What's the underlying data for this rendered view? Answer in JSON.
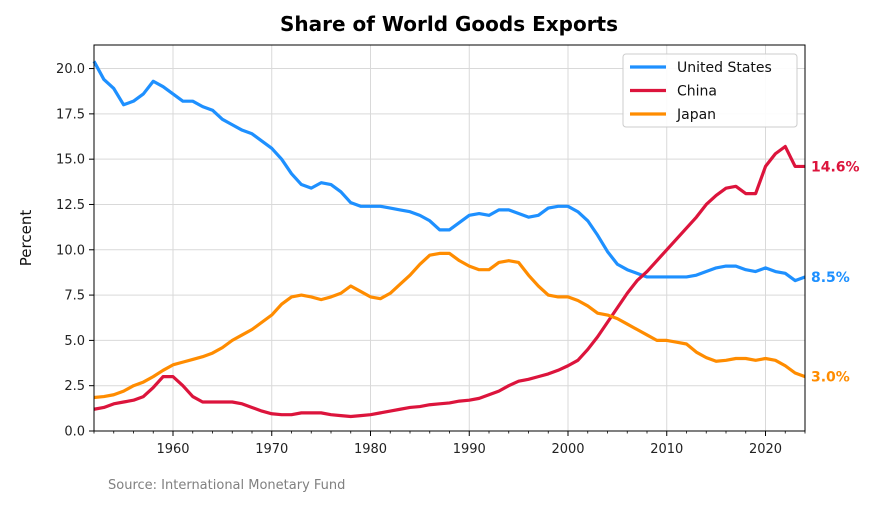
{
  "chart_data": {
    "type": "line",
    "title": "Share of World Goods Exports",
    "xlabel": "",
    "ylabel": "Percent",
    "xlim": [
      1952,
      2024
    ],
    "ylim": [
      0,
      21.3
    ],
    "x_ticks": [
      1960,
      1970,
      1980,
      1990,
      2000,
      2010,
      2020
    ],
    "y_ticks": [
      0.0,
      2.5,
      5.0,
      7.5,
      10.0,
      12.5,
      15.0,
      17.5,
      20.0
    ],
    "grid": true,
    "legend_position": "top-right",
    "x": [
      1952,
      1953,
      1954,
      1955,
      1956,
      1957,
      1958,
      1959,
      1960,
      1961,
      1962,
      1963,
      1964,
      1965,
      1966,
      1967,
      1968,
      1969,
      1970,
      1971,
      1972,
      1973,
      1974,
      1975,
      1976,
      1977,
      1978,
      1979,
      1980,
      1981,
      1982,
      1983,
      1984,
      1985,
      1986,
      1987,
      1988,
      1989,
      1990,
      1991,
      1992,
      1993,
      1994,
      1995,
      1996,
      1997,
      1998,
      1999,
      2000,
      2001,
      2002,
      2003,
      2004,
      2005,
      2006,
      2007,
      2008,
      2009,
      2010,
      2011,
      2012,
      2013,
      2014,
      2015,
      2016,
      2017,
      2018,
      2019,
      2020,
      2021,
      2022,
      2023,
      2024
    ],
    "series": [
      {
        "name": "United States",
        "color": "#1E90FF",
        "end_label": "8.5%",
        "values": [
          20.4,
          19.4,
          18.9,
          18.0,
          18.2,
          18.6,
          19.3,
          19.0,
          18.6,
          18.2,
          18.2,
          17.9,
          17.7,
          17.2,
          16.9,
          16.6,
          16.4,
          16.0,
          15.6,
          15.0,
          14.2,
          13.6,
          13.4,
          13.7,
          13.6,
          13.2,
          12.6,
          12.4,
          12.4,
          12.4,
          12.3,
          12.2,
          12.1,
          11.9,
          11.6,
          11.1,
          11.1,
          11.5,
          11.9,
          12.0,
          11.9,
          12.2,
          12.2,
          12.0,
          11.8,
          11.9,
          12.3,
          12.4,
          12.4,
          12.1,
          11.6,
          10.8,
          9.9,
          9.2,
          8.9,
          8.7,
          8.5,
          8.5,
          8.5,
          8.5,
          8.5,
          8.6,
          8.8,
          9.0,
          9.1,
          9.1,
          8.9,
          8.8,
          9.0,
          8.8,
          8.7,
          8.3,
          8.5
        ]
      },
      {
        "name": "China",
        "color": "#DC143C",
        "end_label": "14.6%",
        "values": [
          1.2,
          1.3,
          1.5,
          1.6,
          1.7,
          1.9,
          2.4,
          3.0,
          3.0,
          2.5,
          1.9,
          1.6,
          1.6,
          1.6,
          1.6,
          1.5,
          1.3,
          1.1,
          0.95,
          0.9,
          0.9,
          1.0,
          1.0,
          1.0,
          0.9,
          0.85,
          0.8,
          0.85,
          0.9,
          1.0,
          1.1,
          1.2,
          1.3,
          1.35,
          1.45,
          1.5,
          1.55,
          1.65,
          1.7,
          1.8,
          2.0,
          2.2,
          2.5,
          2.75,
          2.85,
          3.0,
          3.15,
          3.35,
          3.6,
          3.9,
          4.5,
          5.2,
          6.0,
          6.8,
          7.6,
          8.3,
          8.8,
          9.4,
          10.0,
          10.6,
          11.2,
          11.8,
          12.5,
          13.0,
          13.4,
          13.5,
          13.1,
          13.1,
          14.6,
          15.3,
          15.7,
          14.6,
          14.6
        ]
      },
      {
        "name": "Japan",
        "color": "#FF8C00",
        "end_label": "3.0%",
        "values": [
          1.85,
          1.9,
          2.0,
          2.2,
          2.5,
          2.7,
          3.0,
          3.35,
          3.65,
          3.8,
          3.95,
          4.1,
          4.3,
          4.6,
          5.0,
          5.3,
          5.6,
          6.0,
          6.4,
          7.0,
          7.4,
          7.5,
          7.4,
          7.25,
          7.4,
          7.6,
          8.0,
          7.7,
          7.4,
          7.3,
          7.6,
          8.1,
          8.6,
          9.2,
          9.7,
          9.8,
          9.8,
          9.4,
          9.1,
          8.9,
          8.9,
          9.3,
          9.4,
          9.3,
          8.6,
          8.0,
          7.5,
          7.4,
          7.4,
          7.2,
          6.9,
          6.5,
          6.4,
          6.2,
          5.9,
          5.6,
          5.3,
          5.0,
          5.0,
          4.9,
          4.8,
          4.35,
          4.05,
          3.85,
          3.9,
          4.0,
          4.0,
          3.9,
          4.0,
          3.9,
          3.6,
          3.2,
          3.0
        ]
      }
    ],
    "source": "Source: International Monetary Fund"
  }
}
